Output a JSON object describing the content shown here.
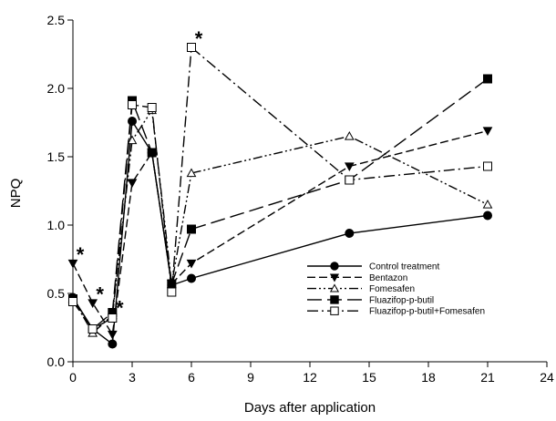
{
  "chart_data": {
    "type": "line",
    "title": "",
    "xlabel": "Days after application",
    "ylabel": "NPQ",
    "xlim": [
      0,
      24
    ],
    "ylim": [
      0.0,
      2.5
    ],
    "xticks": [
      0,
      3,
      6,
      9,
      12,
      15,
      18,
      21,
      24
    ],
    "xtick_labels": [
      "0",
      "3",
      "6",
      "9",
      "12",
      "15",
      "18",
      "21",
      "24"
    ],
    "yticks": [
      0.0,
      0.5,
      1.0,
      1.5,
      2.0,
      2.5
    ],
    "ytick_labels": [
      "0.0",
      "0.5",
      "1.0",
      "1.5",
      "2.0",
      "2.5"
    ],
    "grid": false,
    "legend_position": "lower-right",
    "x": [
      0,
      1,
      2,
      3,
      4,
      5,
      6,
      14,
      21
    ],
    "series": [
      {
        "name": "Control treatment",
        "marker": "filled-circle",
        "dash": "solid",
        "values": [
          0.47,
          0.24,
          0.13,
          1.76,
          1.53,
          0.56,
          0.61,
          0.94,
          1.07
        ]
      },
      {
        "name": "Bentazon",
        "marker": "filled-triangle-down",
        "dash": "dash",
        "values": [
          0.72,
          0.43,
          0.2,
          1.31,
          1.53,
          0.57,
          0.72,
          1.43,
          1.69
        ]
      },
      {
        "name": "Fomesafen",
        "marker": "open-triangle-up",
        "dash": "dash-dot-dot",
        "values": [
          0.46,
          0.21,
          0.34,
          1.62,
          1.84,
          0.57,
          1.38,
          1.65,
          1.15
        ]
      },
      {
        "name": "Fluazifop-p-butil",
        "marker": "filled-square",
        "dash": "long-dash",
        "values": [
          0.46,
          0.24,
          0.36,
          1.91,
          1.53,
          0.57,
          0.97,
          1.33,
          2.07
        ]
      },
      {
        "name": "Fluazifop-p-butil+Fomesafen",
        "marker": "open-square",
        "dash": "dash-dot",
        "values": [
          0.44,
          0.24,
          0.32,
          1.88,
          1.86,
          0.51,
          2.3,
          1.33,
          1.43
        ]
      }
    ],
    "annotations": [
      {
        "text": "*",
        "x": 0,
        "y": 0.72
      },
      {
        "text": "*",
        "x": 1,
        "y": 0.43
      },
      {
        "text": "*",
        "x": 2,
        "y": 0.33
      },
      {
        "text": "*",
        "x": 6,
        "y": 2.3
      }
    ]
  }
}
